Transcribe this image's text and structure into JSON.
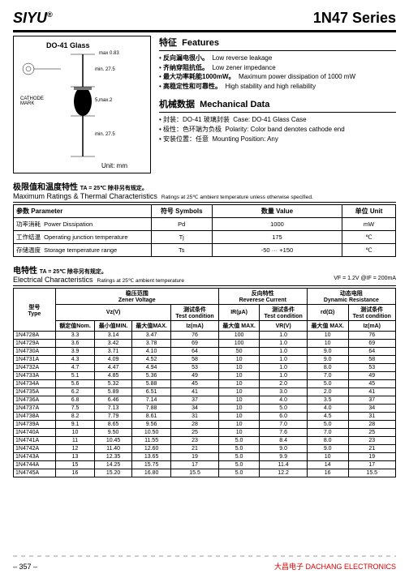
{
  "header": {
    "brand": "SIYU",
    "series": "1N47 Series"
  },
  "diagram": {
    "case_label": "DO-41 Glass",
    "max_dia": "max 0.83",
    "cathode_lbl": "CATHODE\\nMARK",
    "body_len": "5,max.2",
    "lead_len1": "min. 27.5",
    "lead_len2": "min. 27.5",
    "unit": "Unit: mm"
  },
  "features": {
    "heading_cn": "特征",
    "heading_en": "Features",
    "items": [
      {
        "cn": "反向漏电很小。",
        "en": "Low reverse leakage"
      },
      {
        "cn": "齐纳穿阻抗低。",
        "en": "Low zener impedance"
      },
      {
        "cn": "最大功率耗能1000mW。",
        "en": "Maximum power dissipation of 1000 mW"
      },
      {
        "cn": "高稳定性和可靠性。",
        "en": "High stability and high reliability"
      }
    ]
  },
  "mech": {
    "heading_cn": "机械数据",
    "heading_en": "Mechanical Data",
    "items": [
      {
        "cn": "封装：DO-41 玻璃封装",
        "en": "Case: DO-41 Glass Case"
      },
      {
        "cn": "极性：色环端为负极",
        "en": "Polarity: Color band denotes cathode end"
      },
      {
        "cn": "安装位置：任意",
        "en": "Mounting Position: Any"
      }
    ]
  },
  "ratings": {
    "title_cn": "极限值和温度特性",
    "title_cond": "TA = 25℃ 除非另有规定。",
    "title_en": "Maximum Ratings & Thermal Characteristics",
    "title_note": "Ratings at 25℃ ambient temperature unless otherwise specified.",
    "cols": {
      "param_cn": "参数",
      "param_en": "Parameter",
      "sym_cn": "符号",
      "sym_en": "Symbols",
      "val_cn": "数量",
      "val_en": "Value",
      "unit_cn": "单位",
      "unit_en": "Unit"
    },
    "rows": [
      {
        "cn": "功率消耗",
        "en": "Power Dissipation",
        "sym": "Pd",
        "val": "1000",
        "unit": "mW"
      },
      {
        "cn": "工作结温",
        "en": "Operating junction temperature",
        "sym": "Tj",
        "val": "175",
        "unit": "℃"
      },
      {
        "cn": "存储温度",
        "en": "Storage temperature range",
        "sym": "Ts",
        "val": "-50 ··· +150",
        "unit": "℃"
      }
    ]
  },
  "elec": {
    "title_cn": "电特性",
    "title_cond": "TA = 25℃ 除非另有规定。",
    "title_en": "Electrical Characteristics",
    "title_note": "Ratings at 25℃ ambient temperature",
    "rcond": "VF = 1.2V @IF = 200mA",
    "groups": {
      "type_cn": "型号",
      "type_en": "Type",
      "zv_cn": "稳压范围",
      "zv_en": "Zener Voltage",
      "rc_cn": "反向特性",
      "rc_en": "Reverese Current",
      "dr_cn": "动态电阻",
      "dr_en": "Dynamic Resistance"
    },
    "subcols": {
      "vz": "Vz(V)",
      "tc_cn": "测试条件",
      "tc_en": "Test condition",
      "ir": "IR(µA)",
      "vr": "VR(V)",
      "rd": "rd(Ω)",
      "nom": "额定值Nom.",
      "min": "最小值MIN.",
      "max": "最大值MAX.",
      "iz": "Iz(mA)",
      "irmax": "最大值 MAX."
    },
    "rows": [
      {
        "t": "1N4728A",
        "nom": "3.3",
        "min": "3.14",
        "max": "3.47",
        "iz": "76",
        "ir": "100",
        "vr": "1.0",
        "rd": "10",
        "iz2": "76"
      },
      {
        "t": "1N4729A",
        "nom": "3.6",
        "min": "3.42",
        "max": "3.78",
        "iz": "69",
        "ir": "100",
        "vr": "1.0",
        "rd": "10",
        "iz2": "69"
      },
      {
        "t": "1N4730A",
        "nom": "3.9",
        "min": "3.71",
        "max": "4.10",
        "iz": "64",
        "ir": "50",
        "vr": "1.0",
        "rd": "9.0",
        "iz2": "64"
      },
      {
        "t": "1N4731A",
        "nom": "4.3",
        "min": "4.09",
        "max": "4.52",
        "iz": "58",
        "ir": "10",
        "vr": "1.0",
        "rd": "9.0",
        "iz2": "58"
      },
      {
        "t": "1N4732A",
        "nom": "4.7",
        "min": "4.47",
        "max": "4.94",
        "iz": "53",
        "ir": "10",
        "vr": "1.0",
        "rd": "8.0",
        "iz2": "53"
      },
      {
        "t": "1N4733A",
        "nom": "5.1",
        "min": "4.85",
        "max": "5.36",
        "iz": "49",
        "ir": "10",
        "vr": "1.0",
        "rd": "7.0",
        "iz2": "49"
      },
      {
        "t": "1N4734A",
        "nom": "5.6",
        "min": "5.32",
        "max": "5.88",
        "iz": "45",
        "ir": "10",
        "vr": "2.0",
        "rd": "5.0",
        "iz2": "45"
      },
      {
        "t": "1N4735A",
        "nom": "6.2",
        "min": "5.89",
        "max": "6.51",
        "iz": "41",
        "ir": "10",
        "vr": "3.0",
        "rd": "2.0",
        "iz2": "41"
      },
      {
        "t": "1N4736A",
        "nom": "6.8",
        "min": "6.46",
        "max": "7.14",
        "iz": "37",
        "ir": "10",
        "vr": "4.0",
        "rd": "3.5",
        "iz2": "37"
      },
      {
        "t": "1N4737A",
        "nom": "7.5",
        "min": "7.13",
        "max": "7.88",
        "iz": "34",
        "ir": "10",
        "vr": "5.0",
        "rd": "4.0",
        "iz2": "34"
      },
      {
        "t": "1N4738A",
        "nom": "8.2",
        "min": "7.79",
        "max": "8.61",
        "iz": "31",
        "ir": "10",
        "vr": "6.0",
        "rd": "4.5",
        "iz2": "31"
      },
      {
        "t": "1N4739A",
        "nom": "9.1",
        "min": "8.65",
        "max": "9.56",
        "iz": "28",
        "ir": "10",
        "vr": "7.0",
        "rd": "5.0",
        "iz2": "28"
      },
      {
        "t": "1N4740A",
        "nom": "10",
        "min": "9.50",
        "max": "10.50",
        "iz": "25",
        "ir": "10",
        "vr": "7.6",
        "rd": "7.0",
        "iz2": "25"
      },
      {
        "t": "1N4741A",
        "nom": "11",
        "min": "10.45",
        "max": "11.55",
        "iz": "23",
        "ir": "5.0",
        "vr": "8.4",
        "rd": "8.0",
        "iz2": "23"
      },
      {
        "t": "1N4742A",
        "nom": "12",
        "min": "11.40",
        "max": "12.60",
        "iz": "21",
        "ir": "5.0",
        "vr": "9.0",
        "rd": "9.0",
        "iz2": "21"
      },
      {
        "t": "1N4743A",
        "nom": "13",
        "min": "12.35",
        "max": "13.65",
        "iz": "19",
        "ir": "5.0",
        "vr": "9.9",
        "rd": "10",
        "iz2": "19"
      },
      {
        "t": "1N4744A",
        "nom": "15",
        "min": "14.25",
        "max": "15.75",
        "iz": "17",
        "ir": "5.0",
        "vr": "11.4",
        "rd": "14",
        "iz2": "17"
      },
      {
        "t": "1N4745A",
        "nom": "16",
        "min": "15.20",
        "max": "16.80",
        "iz": "15.5",
        "ir": "5.0",
        "vr": "12.2",
        "rd": "16",
        "iz2": "15.5"
      }
    ]
  },
  "footer": {
    "page": "– 357 –",
    "co_cn": "大昌电子",
    "co_en": "DACHANG ELECTRONICS"
  }
}
